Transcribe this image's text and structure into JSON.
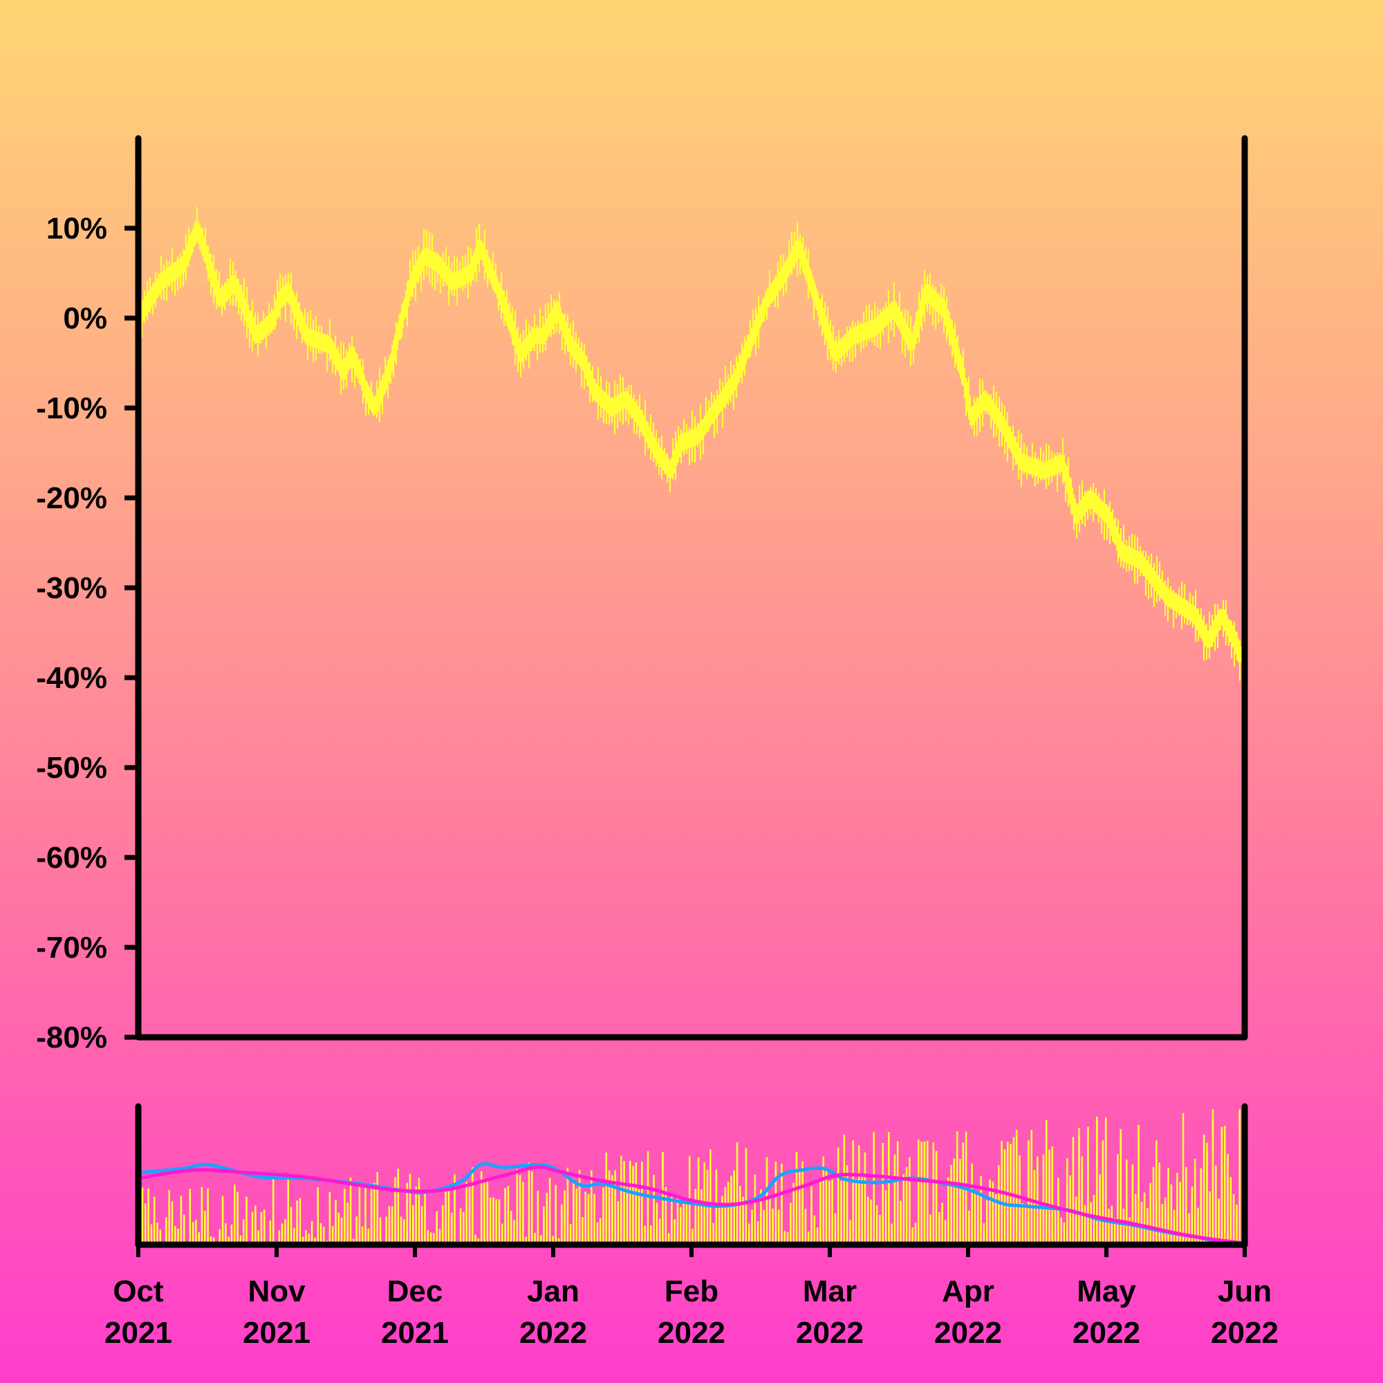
{
  "chart_data": {
    "type": "line",
    "subtype": "ohlc-percent-change-with-volume",
    "title": "",
    "xlabel": "",
    "ylabel": "",
    "x_range": [
      "2021-10-01",
      "2022-06-01"
    ],
    "ylim": [
      -80,
      20
    ],
    "y_ticks": [
      10,
      0,
      -10,
      -20,
      -30,
      -40,
      -50,
      -60,
      -70,
      -80
    ],
    "y_tick_labels": [
      "10%",
      "0%",
      "-10%",
      "-20%",
      "-30%",
      "-40%",
      "-50%",
      "-60%",
      "-70%",
      "-80%"
    ],
    "x_tick_labels": [
      {
        "month": "Oct",
        "year": "2021"
      },
      {
        "month": "Nov",
        "year": "2021"
      },
      {
        "month": "Dec",
        "year": "2021"
      },
      {
        "month": "Jan",
        "year": "2022"
      },
      {
        "month": "Feb",
        "year": "2022"
      },
      {
        "month": "Mar",
        "year": "2022"
      },
      {
        "month": "Apr",
        "year": "2022"
      },
      {
        "month": "May",
        "year": "2022"
      },
      {
        "month": "Jun",
        "year": "2022"
      }
    ],
    "price_series": {
      "unit": "percent change",
      "points": [
        [
          "2021-10-01",
          0
        ],
        [
          "2021-10-06",
          4
        ],
        [
          "2021-10-11",
          6
        ],
        [
          "2021-10-14",
          10
        ],
        [
          "2021-10-19",
          2
        ],
        [
          "2021-10-22",
          4
        ],
        [
          "2021-10-27",
          -2
        ],
        [
          "2021-10-31",
          0
        ],
        [
          "2021-11-01",
          2
        ],
        [
          "2021-11-03",
          3
        ],
        [
          "2021-11-07",
          -2
        ],
        [
          "2021-11-12",
          -3
        ],
        [
          "2021-11-15",
          -6
        ],
        [
          "2021-11-17",
          -4
        ],
        [
          "2021-11-20",
          -8
        ],
        [
          "2021-11-22",
          -10
        ],
        [
          "2021-11-25",
          -6
        ],
        [
          "2021-11-30",
          4
        ],
        [
          "2021-12-03",
          7
        ],
        [
          "2021-12-06",
          6
        ],
        [
          "2021-12-09",
          4
        ],
        [
          "2021-12-13",
          5
        ],
        [
          "2021-12-15",
          8
        ],
        [
          "2021-12-20",
          2
        ],
        [
          "2021-12-24",
          -4
        ],
        [
          "2021-12-27",
          -2
        ],
        [
          "2021-12-29",
          -2
        ],
        [
          "2022-01-01",
          1
        ],
        [
          "2022-01-04",
          -3
        ],
        [
          "2022-01-07",
          -5
        ],
        [
          "2022-01-09",
          -8
        ],
        [
          "2022-01-13",
          -10
        ],
        [
          "2022-01-16",
          -9
        ],
        [
          "2022-01-19",
          -11
        ],
        [
          "2022-01-23",
          -15
        ],
        [
          "2022-01-26",
          -17
        ],
        [
          "2022-01-28",
          -14
        ],
        [
          "2022-02-01",
          -13
        ],
        [
          "2022-02-05",
          -10
        ],
        [
          "2022-02-09",
          -7
        ],
        [
          "2022-02-13",
          -2
        ],
        [
          "2022-02-16",
          2
        ],
        [
          "2022-02-20",
          5
        ],
        [
          "2022-02-23",
          8
        ],
        [
          "2022-02-27",
          2
        ],
        [
          "2022-03-03",
          -4
        ],
        [
          "2022-03-07",
          -2
        ],
        [
          "2022-03-12",
          -1
        ],
        [
          "2022-03-16",
          1
        ],
        [
          "2022-03-20",
          -3
        ],
        [
          "2022-03-23",
          3
        ],
        [
          "2022-03-27",
          1
        ],
        [
          "2022-03-31",
          -6
        ],
        [
          "2022-04-02",
          -11
        ],
        [
          "2022-04-05",
          -9
        ],
        [
          "2022-04-09",
          -12
        ],
        [
          "2022-04-13",
          -16
        ],
        [
          "2022-04-18",
          -17
        ],
        [
          "2022-04-22",
          -16
        ],
        [
          "2022-04-25",
          -22
        ],
        [
          "2022-04-28",
          -20
        ],
        [
          "2022-05-02",
          -22
        ],
        [
          "2022-05-05",
          -26
        ],
        [
          "2022-05-09",
          -27
        ],
        [
          "2022-05-12",
          -29
        ],
        [
          "2022-05-15",
          -31
        ],
        [
          "2022-05-18",
          -32
        ],
        [
          "2022-05-21",
          -33
        ],
        [
          "2022-05-24",
          -36
        ],
        [
          "2022-05-27",
          -33
        ],
        [
          "2022-05-30",
          -36
        ],
        [
          "2022-06-01",
          -39
        ]
      ]
    },
    "volume": {
      "seed": 17,
      "first": "2021-10-01",
      "last": "2022-06-01",
      "moving_averages": [
        {
          "points": [
            [
              0.0,
              0.52
            ],
            [
              0.04,
              0.55
            ],
            [
              0.06,
              0.58
            ],
            [
              0.08,
              0.55
            ],
            [
              0.11,
              0.49
            ],
            [
              0.15,
              0.48
            ],
            [
              0.2,
              0.44
            ],
            [
              0.24,
              0.39
            ],
            [
              0.26,
              0.38
            ],
            [
              0.29,
              0.45
            ],
            [
              0.31,
              0.58
            ],
            [
              0.33,
              0.56
            ],
            [
              0.37,
              0.57
            ],
            [
              0.4,
              0.43
            ],
            [
              0.42,
              0.44
            ],
            [
              0.45,
              0.37
            ],
            [
              0.5,
              0.3
            ],
            [
              0.53,
              0.28
            ],
            [
              0.56,
              0.34
            ],
            [
              0.58,
              0.5
            ],
            [
              0.6,
              0.54
            ],
            [
              0.62,
              0.55
            ],
            [
              0.64,
              0.47
            ],
            [
              0.67,
              0.45
            ],
            [
              0.7,
              0.48
            ],
            [
              0.73,
              0.44
            ],
            [
              0.75,
              0.4
            ],
            [
              0.78,
              0.3
            ],
            [
              0.8,
              0.28
            ],
            [
              0.84,
              0.25
            ],
            [
              0.87,
              0.18
            ],
            [
              0.9,
              0.14
            ],
            [
              0.93,
              0.09
            ],
            [
              0.96,
              0.05
            ],
            [
              0.98,
              0.01
            ],
            [
              1.0,
              0.0
            ]
          ]
        },
        {
          "points": [
            [
              0.0,
              0.48
            ],
            [
              0.05,
              0.54
            ],
            [
              0.1,
              0.52
            ],
            [
              0.15,
              0.49
            ],
            [
              0.2,
              0.43
            ],
            [
              0.24,
              0.39
            ],
            [
              0.28,
              0.4
            ],
            [
              0.33,
              0.5
            ],
            [
              0.36,
              0.56
            ],
            [
              0.38,
              0.53
            ],
            [
              0.42,
              0.46
            ],
            [
              0.46,
              0.41
            ],
            [
              0.5,
              0.32
            ],
            [
              0.53,
              0.29
            ],
            [
              0.56,
              0.32
            ],
            [
              0.6,
              0.42
            ],
            [
              0.63,
              0.5
            ],
            [
              0.66,
              0.5
            ],
            [
              0.7,
              0.47
            ],
            [
              0.74,
              0.44
            ],
            [
              0.78,
              0.38
            ],
            [
              0.82,
              0.29
            ],
            [
              0.86,
              0.21
            ],
            [
              0.9,
              0.15
            ],
            [
              0.94,
              0.08
            ],
            [
              0.97,
              0.04
            ],
            [
              1.0,
              0.01
            ]
          ]
        }
      ]
    },
    "colors": {
      "price": "#ffff33",
      "volume_bars": "#ffff33",
      "ma_fast": "#1aa3ff",
      "ma_slow": "#ff19d0",
      "axes": "#000000",
      "background_top": "#ffd574",
      "background_bottom": "#ff3dcc"
    }
  }
}
